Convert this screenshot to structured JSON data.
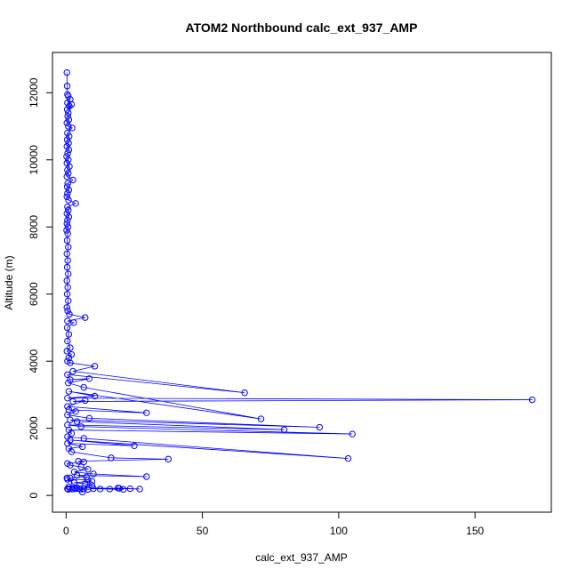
{
  "chart_data": {
    "type": "scatter",
    "title": "ATOM2 Northbound calc_ext_937_AMP",
    "xlabel": "calc_ext_937_AMP",
    "ylabel": "Altitude (m)",
    "xlim": [
      -5,
      178
    ],
    "ylim": [
      -500,
      13200
    ],
    "x_ticks": [
      0,
      50,
      100,
      150
    ],
    "y_ticks": [
      0,
      2000,
      4000,
      6000,
      8000,
      10000,
      12000
    ],
    "grid": false,
    "legend": "none",
    "connect_points": true,
    "color": "#0000ff",
    "series": [
      {
        "points": [
          [
            0.3,
            12600
          ],
          [
            0.4,
            12200
          ],
          [
            0.5,
            11950
          ],
          [
            0.8,
            11900
          ],
          [
            1.5,
            11800
          ],
          [
            0.5,
            11700
          ],
          [
            1.2,
            11600
          ],
          [
            0.4,
            11500
          ],
          [
            2.0,
            11650
          ],
          [
            0.8,
            11400
          ],
          [
            0.6,
            11300
          ],
          [
            1.0,
            11200
          ],
          [
            0.3,
            11100
          ],
          [
            0.8,
            11000
          ],
          [
            2.2,
            10950
          ],
          [
            0.5,
            10800
          ],
          [
            1.1,
            10700
          ],
          [
            0.4,
            10600
          ],
          [
            0.9,
            10500
          ],
          [
            0.3,
            10400
          ],
          [
            1.0,
            10300
          ],
          [
            0.6,
            10200
          ],
          [
            0.2,
            10100
          ],
          [
            0.8,
            10000
          ],
          [
            0.3,
            9900
          ],
          [
            1.2,
            9800
          ],
          [
            0.5,
            9700
          ],
          [
            0.8,
            9600
          ],
          [
            0.3,
            9500
          ],
          [
            2.5,
            9400
          ],
          [
            0.6,
            9300
          ],
          [
            0.4,
            9200
          ],
          [
            1.0,
            9100
          ],
          [
            0.5,
            9000
          ],
          [
            0.3,
            8900
          ],
          [
            0.9,
            8800
          ],
          [
            3.5,
            8700
          ],
          [
            0.5,
            8600
          ],
          [
            0.8,
            8500
          ],
          [
            0.3,
            8400
          ],
          [
            1.0,
            8300
          ],
          [
            0.5,
            8200
          ],
          [
            0.3,
            8100
          ],
          [
            0.7,
            8000
          ],
          [
            0.2,
            7900
          ],
          [
            0.6,
            7800
          ],
          [
            0.4,
            7600
          ],
          [
            0.8,
            7400
          ],
          [
            0.3,
            7200
          ],
          [
            0.6,
            7000
          ],
          [
            0.4,
            6800
          ],
          [
            0.8,
            6600
          ],
          [
            0.3,
            6400
          ],
          [
            0.6,
            6200
          ],
          [
            0.4,
            6000
          ],
          [
            0.8,
            5800
          ],
          [
            0.3,
            5600
          ],
          [
            0.6,
            5500
          ],
          [
            1.2,
            5400
          ],
          [
            7.0,
            5300
          ],
          [
            0.5,
            5200
          ],
          [
            2.8,
            5150
          ],
          [
            0.4,
            5000
          ],
          [
            1.0,
            4800
          ],
          [
            0.5,
            4600
          ],
          [
            1.5,
            4400
          ],
          [
            0.3,
            4300
          ],
          [
            2.0,
            4200
          ],
          [
            1.0,
            4100
          ],
          [
            0.5,
            4000
          ],
          [
            1.5,
            3950
          ],
          [
            10.5,
            3850
          ],
          [
            2.5,
            3700
          ],
          [
            65.5,
            3060
          ],
          [
            0.5,
            3600
          ],
          [
            1.5,
            3450
          ],
          [
            8.5,
            3480
          ],
          [
            0.8,
            3350
          ],
          [
            6.5,
            3220
          ],
          [
            71.5,
            2280
          ],
          [
            1.0,
            3100
          ],
          [
            10.5,
            2960
          ],
          [
            0.5,
            2900
          ],
          [
            171.0,
            2850
          ],
          [
            2.5,
            2800
          ],
          [
            7.0,
            2830
          ],
          [
            0.5,
            2650
          ],
          [
            29.5,
            2460
          ],
          [
            1.0,
            2550
          ],
          [
            3.5,
            2500
          ],
          [
            0.5,
            2400
          ],
          [
            8.5,
            2300
          ],
          [
            93.0,
            2030
          ],
          [
            1.5,
            2250
          ],
          [
            4.0,
            2200
          ],
          [
            80.0,
            1960
          ],
          [
            0.5,
            2100
          ],
          [
            5.5,
            2050
          ],
          [
            105.0,
            1830
          ],
          [
            1.0,
            1950
          ],
          [
            2.0,
            1850
          ],
          [
            0.5,
            1750
          ],
          [
            6.5,
            1700
          ],
          [
            103.5,
            1100
          ],
          [
            1.5,
            1650
          ],
          [
            25.0,
            1480
          ],
          [
            0.5,
            1550
          ],
          [
            6.0,
            1450
          ],
          [
            1.0,
            1400
          ],
          [
            2.0,
            1300
          ],
          [
            16.5,
            1120
          ],
          [
            37.5,
            1080
          ],
          [
            4.5,
            1020
          ],
          [
            6.5,
            1000
          ],
          [
            0.5,
            950
          ],
          [
            1.5,
            900
          ],
          [
            5.5,
            850
          ],
          [
            8.0,
            780
          ],
          [
            3.0,
            700
          ],
          [
            10.0,
            640
          ],
          [
            29.5,
            560
          ],
          [
            4.0,
            600
          ],
          [
            7.5,
            550
          ],
          [
            1.5,
            520
          ],
          [
            0.5,
            480
          ],
          [
            8.0,
            460
          ],
          [
            9.5,
            420
          ],
          [
            3.0,
            380
          ],
          [
            7.0,
            350
          ],
          [
            9.5,
            300
          ],
          [
            1.0,
            260
          ],
          [
            4.0,
            230
          ],
          [
            27.0,
            190
          ],
          [
            23.5,
            200
          ],
          [
            19.0,
            220
          ],
          [
            16.0,
            190
          ],
          [
            12.5,
            190
          ],
          [
            19.5,
            210
          ],
          [
            21.0,
            180
          ],
          [
            10.0,
            200
          ],
          [
            8.0,
            180
          ],
          [
            6.5,
            200
          ],
          [
            5.0,
            190
          ],
          [
            3.5,
            200
          ],
          [
            2.5,
            190
          ],
          [
            1.5,
            200
          ],
          [
            0.8,
            180
          ],
          [
            0.5,
            200
          ],
          [
            6.0,
            100
          ],
          [
            0.3,
            520
          ]
        ]
      }
    ]
  }
}
